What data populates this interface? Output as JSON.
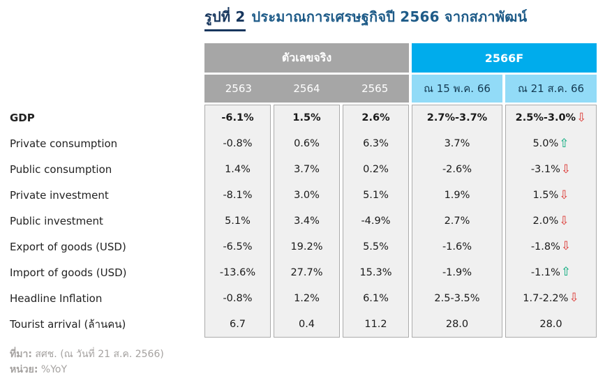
{
  "title": {
    "figure_label": "รูปที่ 2",
    "text": "ประมาณการเศรษฐกิจปี 2566 จากสภาพัฒน์"
  },
  "table": {
    "group_headers": {
      "actual": "ตัวเลขจริง",
      "forecast": "2566F"
    },
    "col_headers": [
      "2563",
      "2564",
      "2565",
      "ณ 15 พ.ค. 66",
      "ณ 21 ส.ค. 66"
    ]
  },
  "chart_data": {
    "type": "table",
    "title": "รูปที่ 2 ประมาณการเศรษฐกิจปี 2566 จากสภาพัฒน์",
    "unit": "%YoY",
    "columns": [
      "2563",
      "2564",
      "2565",
      "2566F ณ 15 พ.ค. 66",
      "2566F ณ 21 ส.ค. 66"
    ],
    "rows": [
      {
        "label": "GDP",
        "bold": true,
        "values": [
          "-6.1%",
          "1.5%",
          "2.6%",
          "2.7%-3.7%",
          "2.5%-3.0%"
        ],
        "arrow": "down"
      },
      {
        "label": "Private consumption",
        "bold": false,
        "values": [
          "-0.8%",
          "0.6%",
          "6.3%",
          "3.7%",
          "5.0%"
        ],
        "arrow": "up"
      },
      {
        "label": "Public consumption",
        "bold": false,
        "values": [
          "1.4%",
          "3.7%",
          "0.2%",
          "-2.6%",
          "-3.1%"
        ],
        "arrow": "down"
      },
      {
        "label": "Private investment",
        "bold": false,
        "values": [
          "-8.1%",
          "3.0%",
          "5.1%",
          "1.9%",
          "1.5%"
        ],
        "arrow": "down"
      },
      {
        "label": "Public investment",
        "bold": false,
        "values": [
          "5.1%",
          "3.4%",
          "-4.9%",
          "2.7%",
          "2.0%"
        ],
        "arrow": "down"
      },
      {
        "label": "Export of goods (USD)",
        "bold": false,
        "values": [
          "-6.5%",
          "19.2%",
          "5.5%",
          "-1.6%",
          "-1.8%"
        ],
        "arrow": "down"
      },
      {
        "label": "Import of goods (USD)",
        "bold": false,
        "values": [
          "-13.6%",
          "27.7%",
          "15.3%",
          "-1.9%",
          "-1.1%"
        ],
        "arrow": "up"
      },
      {
        "label": "Headline Inflation",
        "bold": false,
        "values": [
          "-0.8%",
          "1.2%",
          "6.1%",
          "2.5-3.5%",
          "1.7-2.2%"
        ],
        "arrow": "down"
      },
      {
        "label": "Tourist arrival (ล้านคน)",
        "bold": false,
        "values": [
          "6.7",
          "0.4",
          "11.2",
          "28.0",
          "28.0"
        ],
        "arrow": "none"
      }
    ],
    "source": "สศช. (ณ วันที่ 21 ส.ค. 2566)"
  },
  "icons": {
    "arrow_up": "⇧",
    "arrow_down": "⇩"
  },
  "footer": {
    "source_label": "ที่มา:",
    "source_value": "สศช. (ณ วันที่ 21 ส.ค. 2566)",
    "unit_label": "หน่วย:",
    "unit_value": "%YoY"
  },
  "colors": {
    "header_gray": "#A6A6A6",
    "forecast_blue": "#00ACEC",
    "forecast_light_blue": "#92DBF7",
    "cell_bg": "#F0F0F0",
    "cell_border": "#ABABAB",
    "arrow_up_green": "#00A878",
    "arrow_down_red": "#DB322E",
    "title_navy": "#17365D",
    "title_blue": "#1E5B88",
    "footer_gray": "#A5A2A0"
  }
}
